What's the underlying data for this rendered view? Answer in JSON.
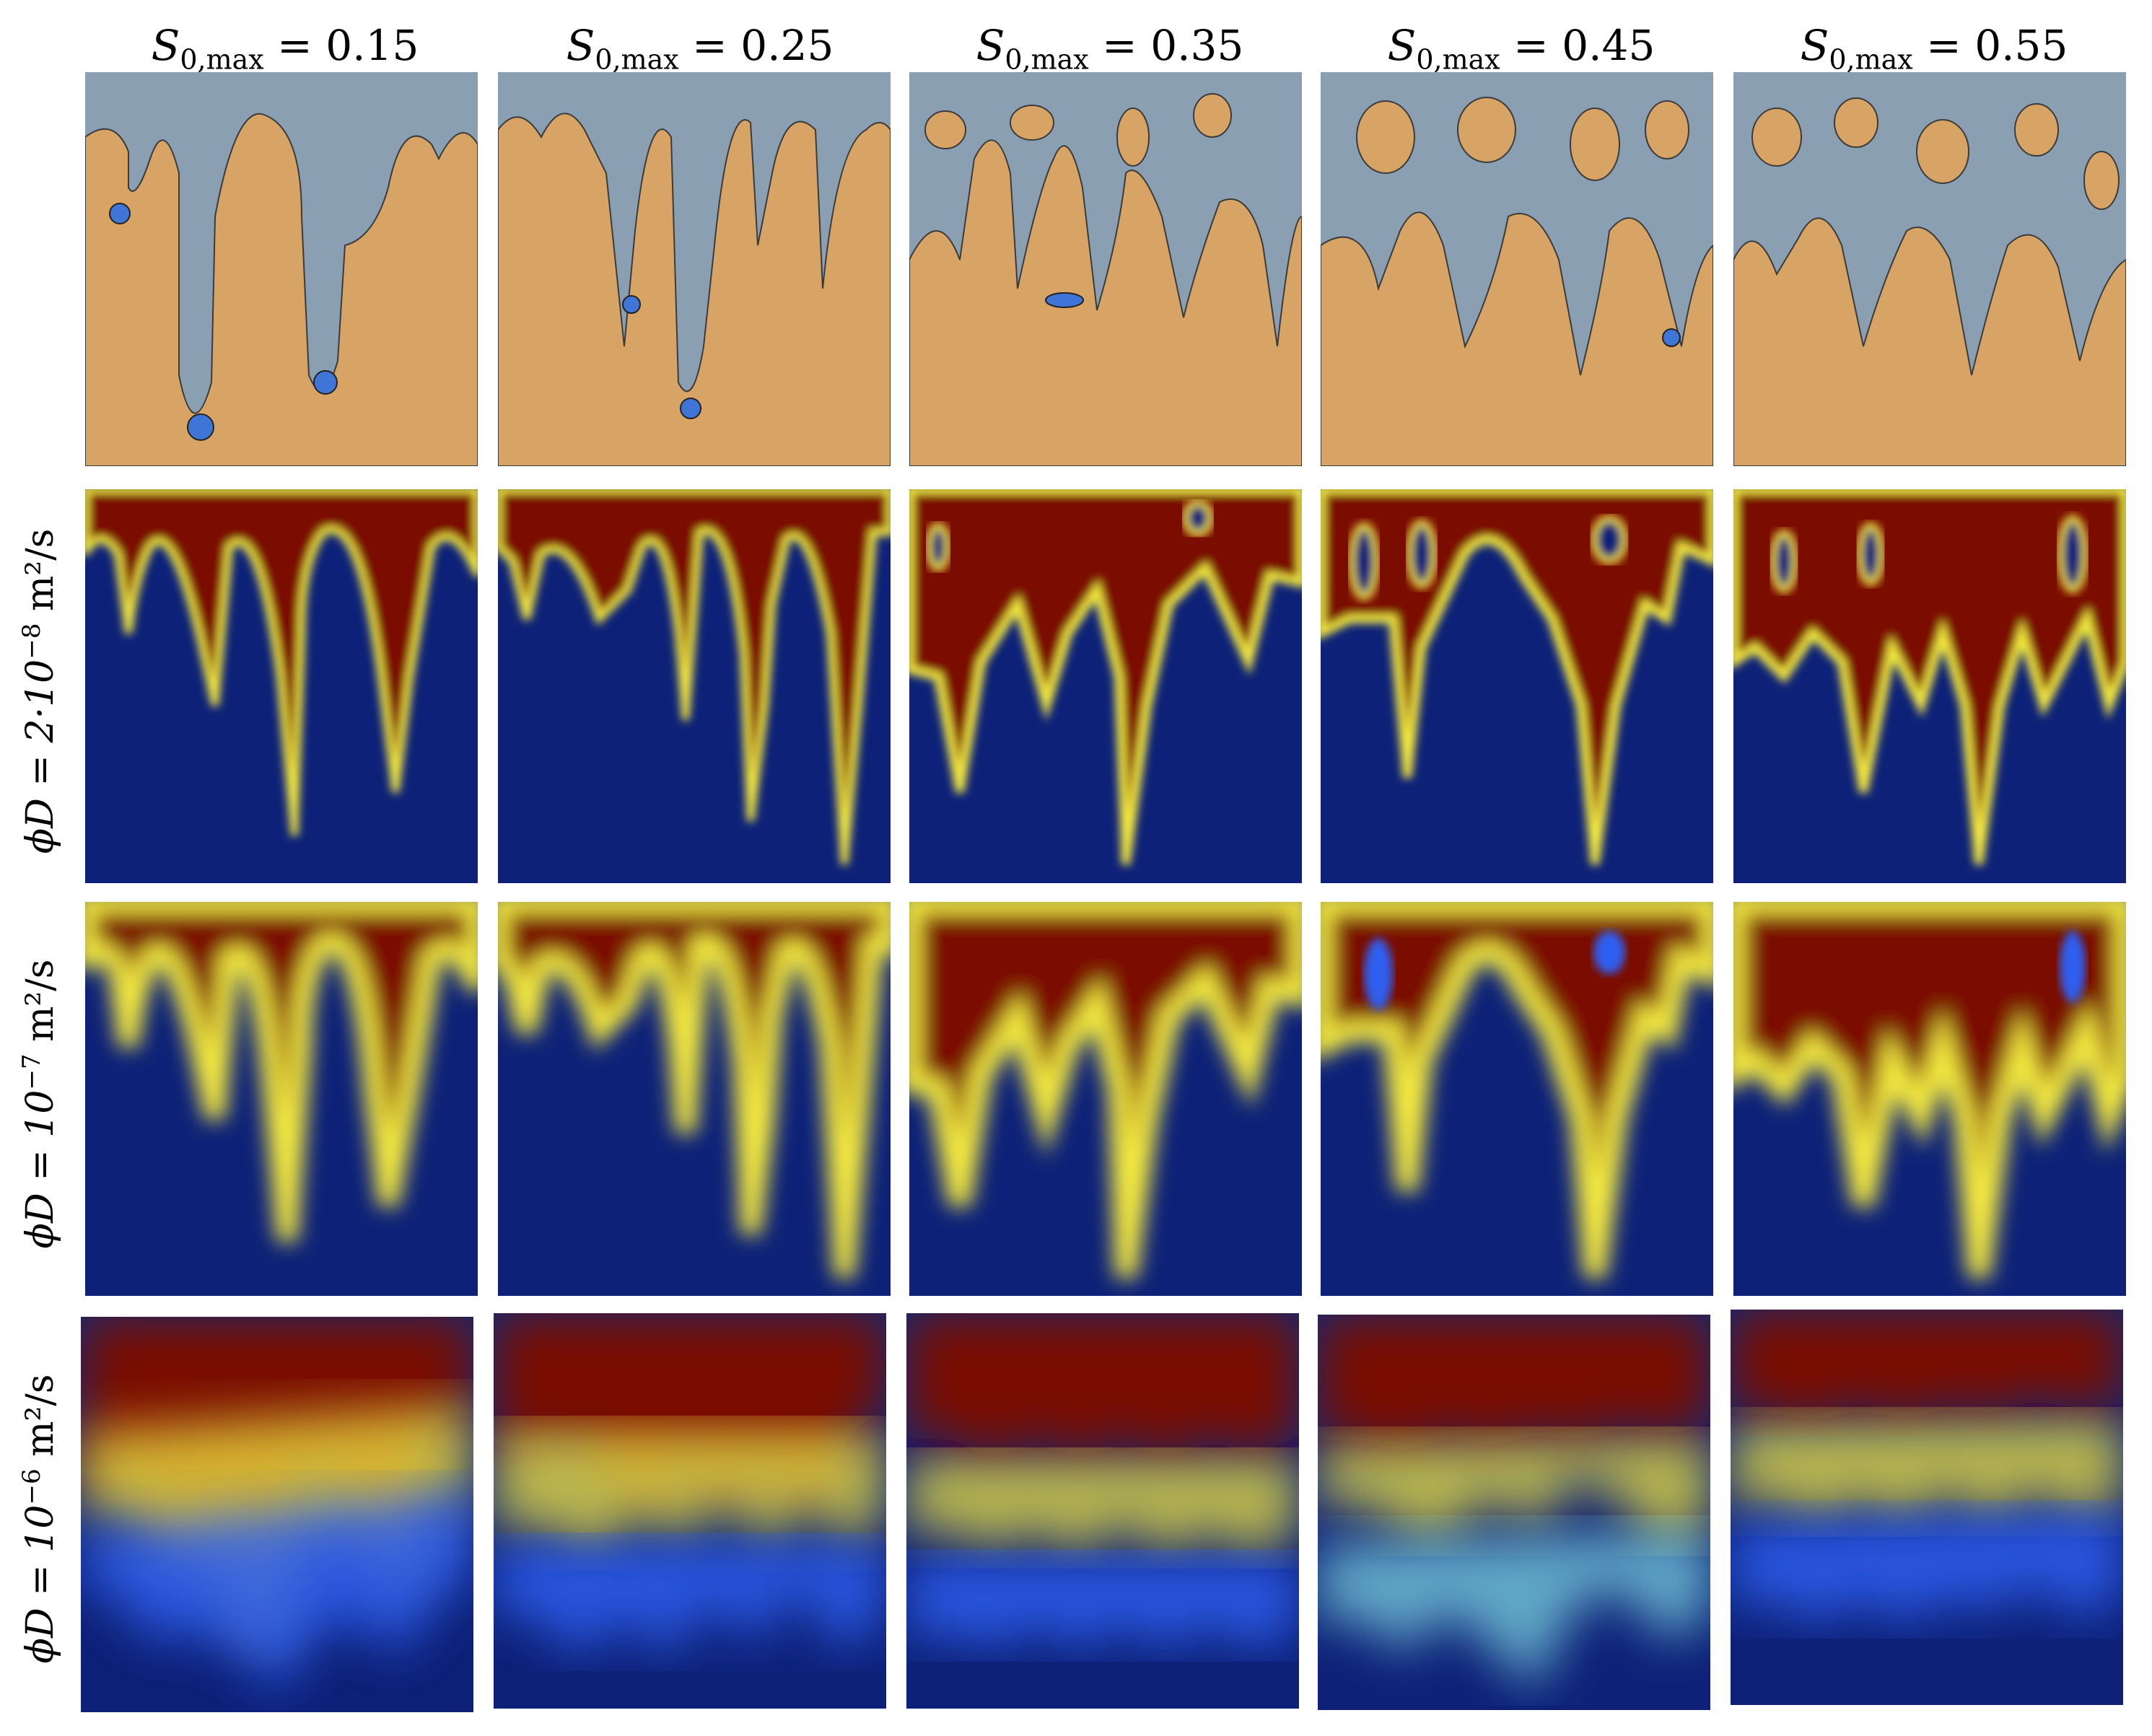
{
  "columns": [
    {
      "symbol": "S",
      "sub": "0,max",
      "value": "= 0.15"
    },
    {
      "symbol": "S",
      "sub": "0,max",
      "value": "= 0.25"
    },
    {
      "symbol": "S",
      "sub": "0,max",
      "value": "= 0.35"
    },
    {
      "symbol": "S",
      "sub": "0,max",
      "value": "= 0.45"
    },
    {
      "symbol": "S",
      "sub": "0,max",
      "value": "= 0.55"
    }
  ],
  "rows": [
    {
      "label_prefix": "",
      "label_exp": "",
      "label_suffix": ""
    },
    {
      "label_prefix": "ϕD = 2·10",
      "label_exp": "−8",
      "label_suffix": " m²/s"
    },
    {
      "label_prefix": "ϕD = 10",
      "label_exp": "−7",
      "label_suffix": " m²/s"
    },
    {
      "label_prefix": "ϕD = 10",
      "label_exp": "−6",
      "label_suffix": " m²/s"
    }
  ],
  "colors": {
    "saturation_matrix": "#d8a466",
    "saturation_fluid": "#8b9fb3",
    "saturation_blob": "#3f75d6",
    "jet_high": "#7a0b00",
    "jet_mid_red": "#e53010",
    "jet_yellow": "#f3e840",
    "jet_cyan": "#8ef0f0",
    "jet_blue": "#2f5ef0",
    "jet_low": "#0d2178"
  }
}
